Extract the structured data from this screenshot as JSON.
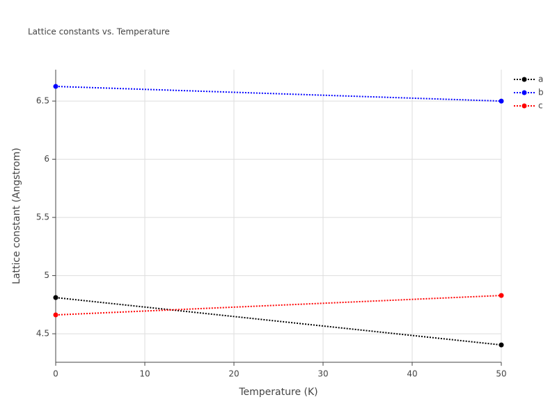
{
  "chart_data": {
    "type": "line",
    "title": "Lattice constants vs. Temperature",
    "x_label": "Temperature (K)",
    "y_label": "Lattice constant (Angstrom)",
    "x": [
      0,
      50
    ],
    "series": [
      {
        "name": "a",
        "color": "#000000",
        "values": [
          4.811,
          4.404
        ]
      },
      {
        "name": "b",
        "color": "#0000ff",
        "values": [
          6.626,
          6.5
        ]
      },
      {
        "name": "c",
        "color": "#ff0000",
        "values": [
          4.662,
          4.829
        ]
      }
    ],
    "xlim": [
      0,
      50
    ],
    "xticks": [
      0,
      10,
      20,
      30,
      40,
      50
    ],
    "ylim": [
      4.255,
      6.77
    ],
    "yticks": [
      4.5,
      5,
      5.5,
      6,
      6.5
    ],
    "grid": true,
    "legend": "top-right"
  }
}
